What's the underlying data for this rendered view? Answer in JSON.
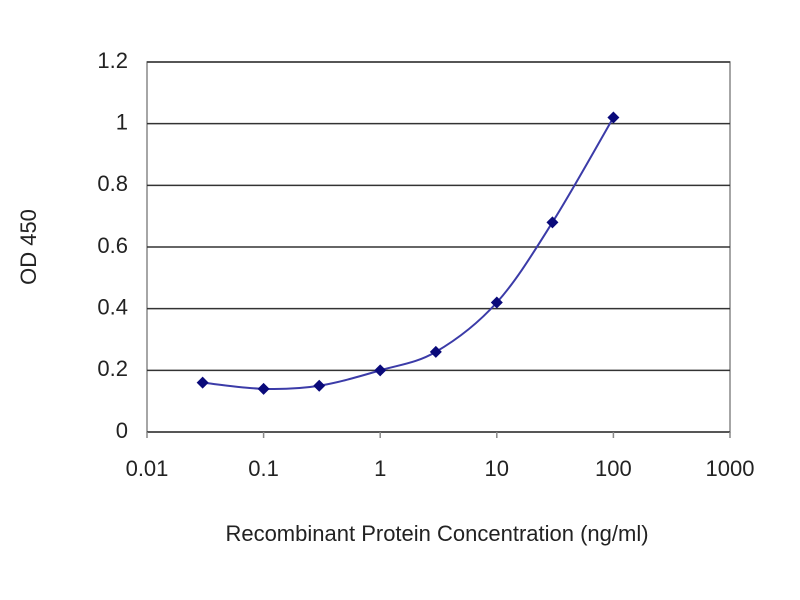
{
  "chart_data": {
    "type": "line",
    "log_x": true,
    "grid": true,
    "x_label": "Recombinant Protein Concentration (ng/ml)",
    "y_label": "OD 450",
    "x": [
      0.03,
      0.1,
      0.3,
      1,
      3,
      10,
      30,
      100
    ],
    "series": [
      {
        "name": "OD 450",
        "color": "#3b3ba8",
        "marker_color": "#0a0a7a",
        "values": [
          0.16,
          0.14,
          0.15,
          0.2,
          0.26,
          0.42,
          0.68,
          1.02
        ]
      }
    ],
    "xlim": [
      0.01,
      1000
    ],
    "xticks": [
      0.01,
      0.1,
      1,
      10,
      100,
      1000
    ],
    "ylim": [
      0,
      1.2
    ],
    "yticks": [
      0,
      0.2,
      0.4,
      0.6,
      0.8,
      1,
      1.2
    ]
  }
}
